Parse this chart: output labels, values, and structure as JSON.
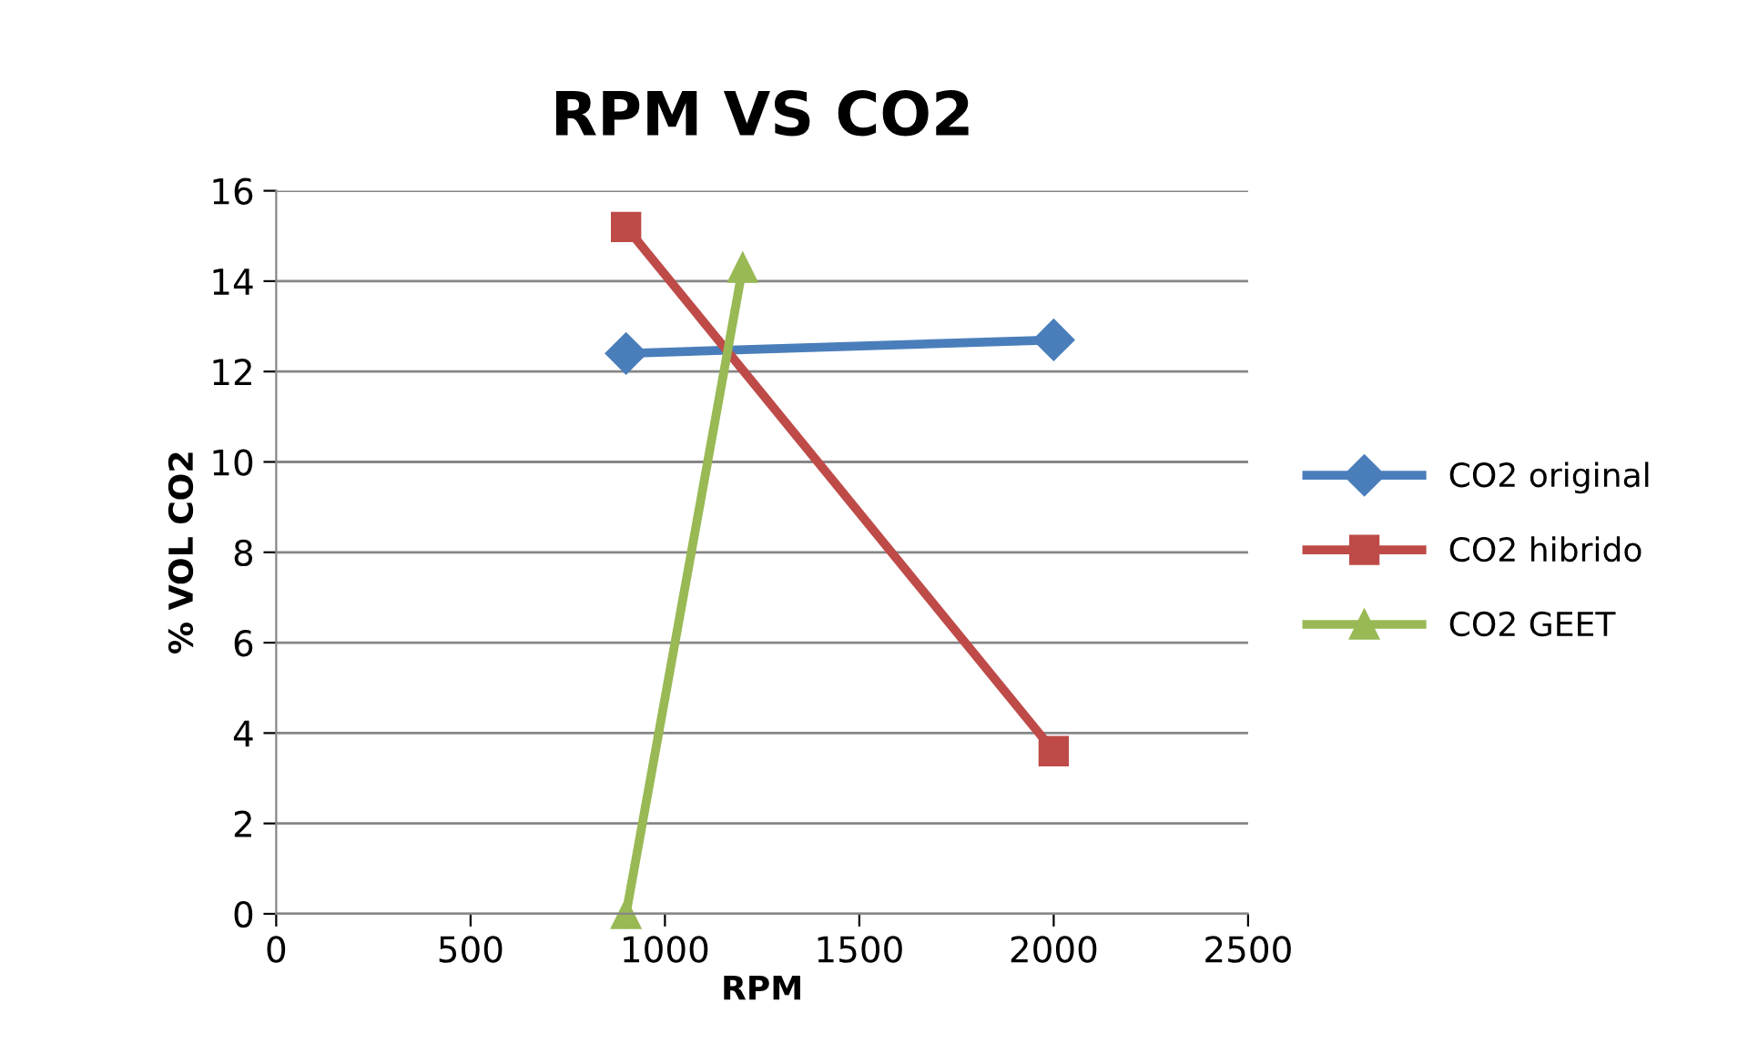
{
  "chart_data": {
    "type": "line",
    "title": "RPM VS CO2",
    "xlabel": "RPM",
    "ylabel": "% VOL CO2",
    "xlim": [
      0,
      2500
    ],
    "xticks": [
      0,
      500,
      1000,
      1500,
      2000,
      2500
    ],
    "ylim": [
      0,
      16
    ],
    "yticks": [
      0,
      2,
      4,
      6,
      8,
      10,
      12,
      14,
      16
    ],
    "grid": "y",
    "legend": "right",
    "series": [
      {
        "name": "CO2 original",
        "color": "#4a7ebb",
        "marker": "diamond",
        "x": [
          900,
          2000
        ],
        "values": [
          12.4,
          12.7
        ]
      },
      {
        "name": "CO2 hibrido",
        "color": "#be4b48",
        "marker": "square",
        "x": [
          900,
          2000
        ],
        "values": [
          15.2,
          3.6
        ]
      },
      {
        "name": "CO2 GEET",
        "color": "#98b954",
        "marker": "triangle",
        "x": [
          900,
          1200
        ],
        "values": [
          0,
          14.3
        ]
      }
    ]
  }
}
